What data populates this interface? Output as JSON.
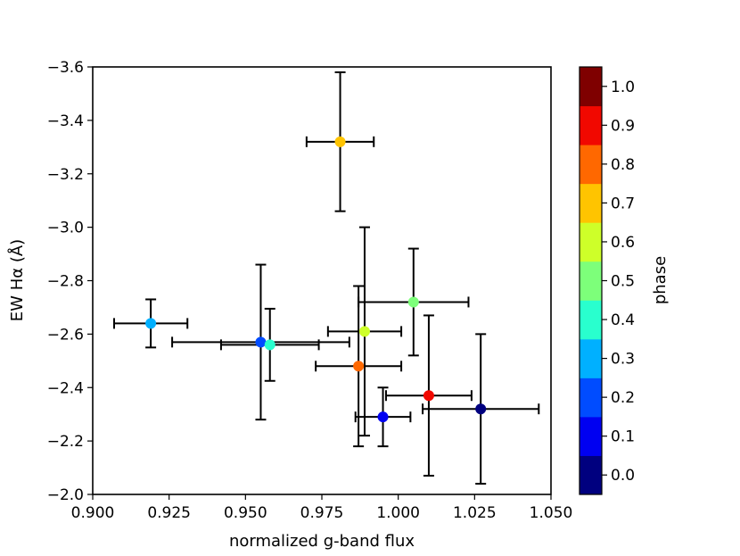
{
  "chart_data": {
    "type": "scatter",
    "title": "",
    "xlabel": "normalized g-band flux",
    "ylabel": "EW Hα (Å)",
    "xlim": [
      0.9,
      1.05
    ],
    "ylim": [
      -2.0,
      -3.6
    ],
    "y_inverted": true,
    "grid": false,
    "xticks": [
      "0.900",
      "0.925",
      "0.950",
      "0.975",
      "1.000",
      "1.025",
      "1.050"
    ],
    "yticks": [
      "−2.0",
      "−2.2",
      "−2.4",
      "−2.6",
      "−2.8",
      "−3.0",
      "−3.2",
      "−3.4",
      "−3.6"
    ],
    "colorbar": {
      "label": "phase",
      "ticks": [
        "0.0",
        "0.1",
        "0.2",
        "0.3",
        "0.4",
        "0.5",
        "0.6",
        "0.7",
        "0.8",
        "0.9",
        "1.0"
      ],
      "range": [
        -0.05,
        1.05
      ],
      "colors": [
        "#00007f",
        "#0000f1",
        "#004cff",
        "#00b0ff",
        "#29ffce",
        "#7dff7a",
        "#ceff29",
        "#ffc400",
        "#ff6800",
        "#f10800",
        "#7f0000"
      ]
    },
    "points": [
      {
        "x": 1.027,
        "y": -2.32,
        "xerr": 0.019,
        "yerr": 0.28,
        "phase": 0.0
      },
      {
        "x": 0.995,
        "y": -2.29,
        "xerr": 0.009,
        "yerr": 0.11,
        "phase": 0.1
      },
      {
        "x": 0.955,
        "y": -2.57,
        "xerr": 0.029,
        "yerr": 0.29,
        "phase": 0.2
      },
      {
        "x": 0.919,
        "y": -2.64,
        "xerr": 0.012,
        "yerr": 0.09,
        "phase": 0.3
      },
      {
        "x": 0.958,
        "y": -2.56,
        "xerr": 0.016,
        "yerr": 0.135,
        "phase": 0.4
      },
      {
        "x": 1.005,
        "y": -2.72,
        "xerr": 0.018,
        "yerr": 0.2,
        "phase": 0.5
      },
      {
        "x": 0.989,
        "y": -2.61,
        "xerr": 0.012,
        "yerr": 0.39,
        "phase": 0.6
      },
      {
        "x": 0.981,
        "y": -3.32,
        "xerr": 0.011,
        "yerr": 0.26,
        "phase": 0.7
      },
      {
        "x": 0.987,
        "y": -2.48,
        "xerr": 0.014,
        "yerr": 0.3,
        "phase": 0.8
      },
      {
        "x": 1.01,
        "y": -2.37,
        "xerr": 0.014,
        "yerr": 0.3,
        "phase": 0.9
      }
    ]
  }
}
